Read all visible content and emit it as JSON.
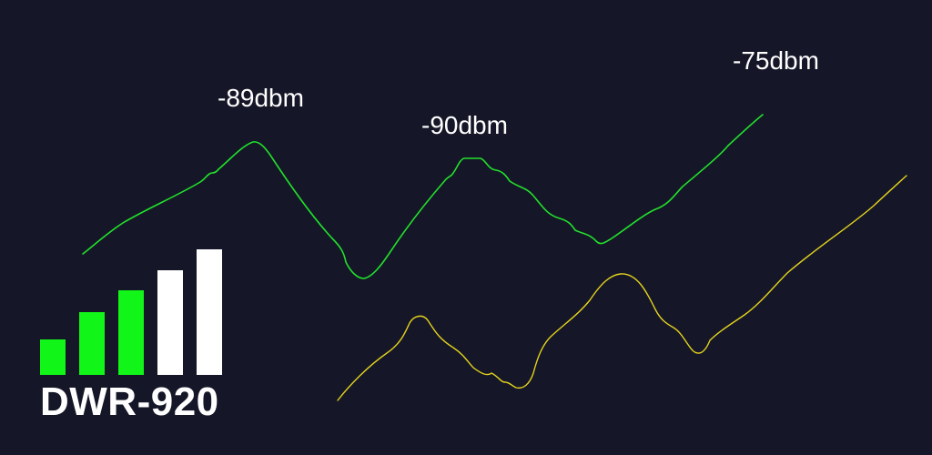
{
  "device": {
    "name": "DWR-920"
  },
  "signal_labels": [
    {
      "text": "-89dbm"
    },
    {
      "text": "-90dbm"
    },
    {
      "text": "-75dbm"
    }
  ],
  "signal_icon": {
    "bars_total": 5,
    "bars_active": 3,
    "active_color": "#11f518",
    "inactive_color": "#ffffff"
  },
  "colors": {
    "background": "#151728",
    "wave_primary": "#22e02a",
    "wave_secondary": "#e3d21c"
  }
}
